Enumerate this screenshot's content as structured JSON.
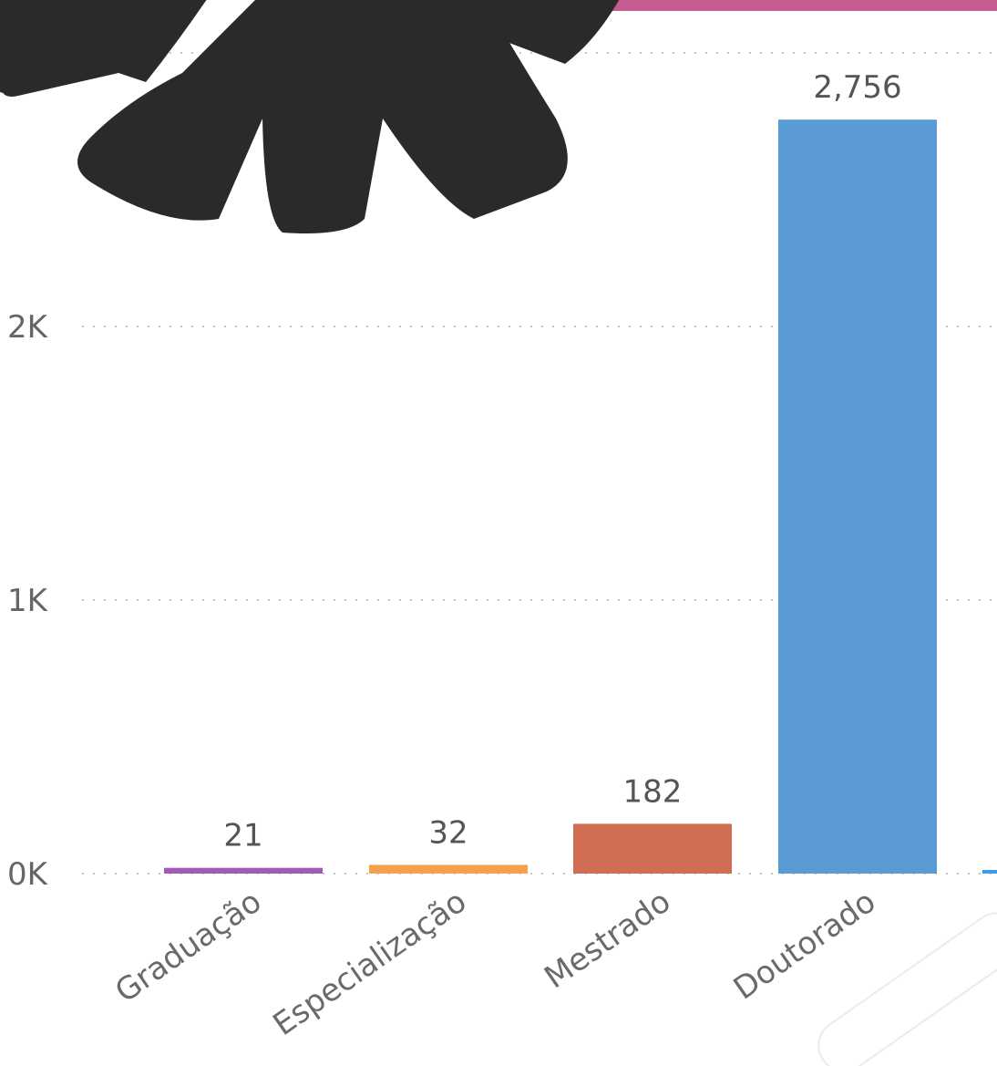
{
  "chart_data": {
    "type": "bar",
    "categories": [
      "Graduação",
      "Especialização",
      "Mestrado",
      "Doutorado",
      ""
    ],
    "values": [
      21,
      32,
      182,
      2756,
      8
    ],
    "data_labels": [
      "21",
      "32",
      "182",
      "2,756",
      ""
    ],
    "colors": [
      "#a25bb4",
      "#f5a04f",
      "#d16d52",
      "#5b9bd5",
      "#3e99e6"
    ],
    "y_ticks": [
      {
        "value": 0,
        "label": "0K"
      },
      {
        "value": 1000,
        "label": "1K"
      },
      {
        "value": 2000,
        "label": "2K"
      },
      {
        "value": 3000,
        "label": ""
      }
    ],
    "ylim": [
      0,
      3000
    ],
    "grid": true,
    "title": "",
    "xlabel": "",
    "ylabel": ""
  },
  "decor": {
    "banner_color": "#c45c8f",
    "flower_color": "#2b2a28"
  }
}
